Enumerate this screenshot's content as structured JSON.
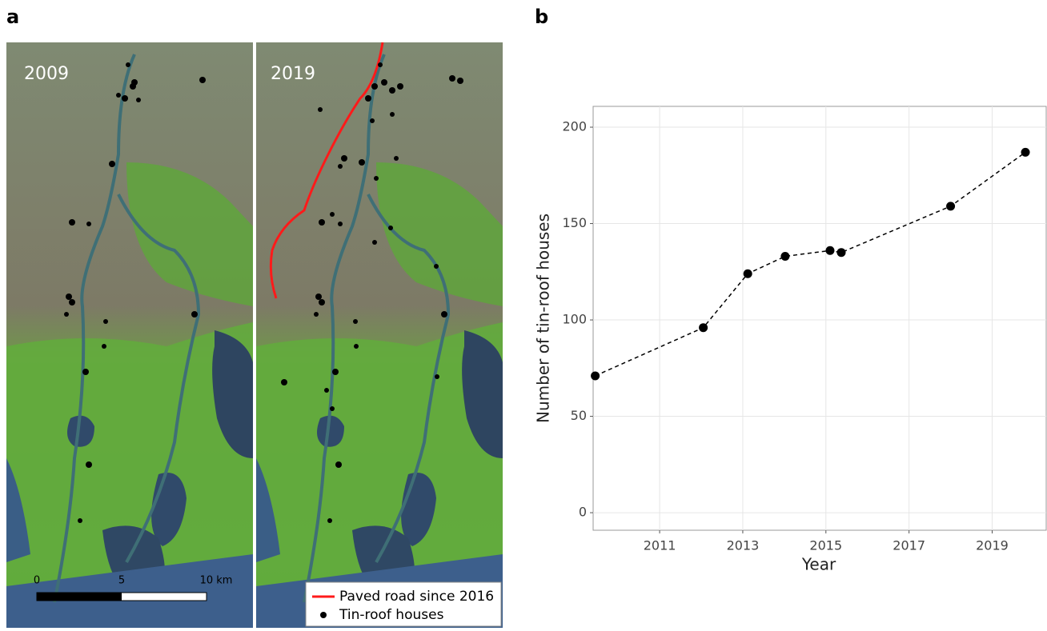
{
  "panel_labels": {
    "a": "a",
    "b": "b"
  },
  "map": {
    "left_year": "2009",
    "right_year": "2019",
    "scale_labels": [
      "0",
      "5",
      "10 km"
    ],
    "legend": {
      "road": "Paved road since 2016",
      "houses": "Tin-roof houses"
    }
  },
  "chart_data": {
    "type": "line",
    "x_label": "Year",
    "y_label": "Number of tin-roof houses",
    "x": [
      2009.45,
      2012.05,
      2013.12,
      2014.02,
      2015.1,
      2015.37,
      2018.0,
      2019.8
    ],
    "series": [
      {
        "name": "Tin-roof houses",
        "color": "#000000",
        "values": [
          71,
          96,
          124,
          133,
          136,
          135,
          159,
          187
        ]
      }
    ],
    "xlim": [
      2009.4,
      2020.3
    ],
    "xticks": [
      2011,
      2013,
      2015,
      2017,
      2019
    ],
    "ylim": [
      -9.1,
      210.8
    ],
    "yticks": [
      0,
      50,
      100,
      150,
      200
    ],
    "grid": true,
    "line_style": "dashed"
  }
}
